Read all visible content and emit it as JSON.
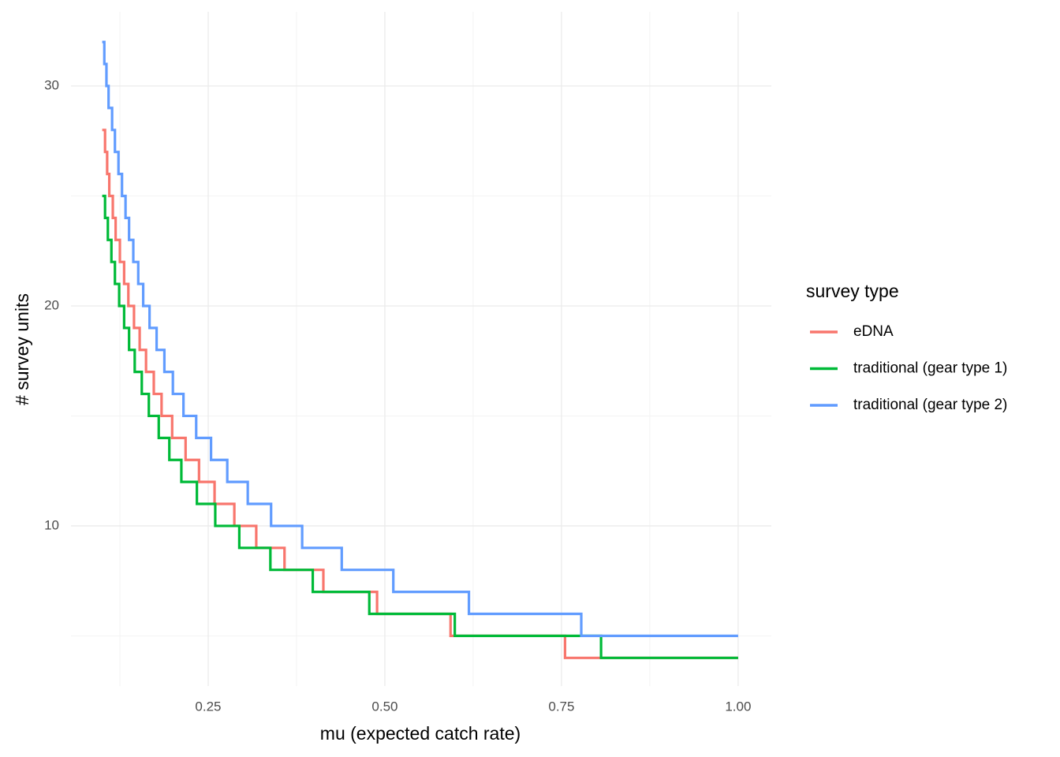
{
  "chart_data": {
    "type": "step",
    "x_label": "mu (expected catch rate)",
    "y_label": "# survey units",
    "legend_title": "survey type",
    "legend_position": "right",
    "grid": true,
    "xlim": [
      0.0558,
      1.047
    ],
    "ylim": [
      2.72,
      33.37
    ],
    "xticks": [
      0.25,
      {
        "value": 0.5,
        "label": "0.50"
      },
      0.75,
      {
        "value": 1,
        "label": "1.00"
      }
    ],
    "yticks": [
      10,
      20,
      30
    ],
    "x_minor_ticks": [
      0.125,
      0.375,
      0.625,
      0.875
    ],
    "y_minor_ticks": [
      5,
      15,
      25
    ],
    "series": [
      {
        "name": "eDNA",
        "color": "#F8766D",
        "x": [
          0.1,
          0.104,
          0.107,
          0.11,
          0.115,
          0.119,
          0.125,
          0.131,
          0.137,
          0.145,
          0.153,
          0.162,
          0.173,
          0.184,
          0.199,
          0.218,
          0.237,
          0.259,
          0.287,
          0.318,
          0.358,
          0.413,
          0.489,
          0.593,
          0.755,
          1.0
        ],
        "values": [
          28,
          27,
          26,
          25,
          24,
          23,
          22,
          21,
          20,
          19,
          18,
          17,
          16,
          15,
          14,
          13,
          12,
          11,
          10,
          9,
          8,
          7,
          6,
          5,
          4,
          4
        ]
      },
      {
        "name": "traditional (gear type 1)",
        "color": "#00BA38",
        "x": [
          0.1,
          0.104,
          0.108,
          0.113,
          0.118,
          0.124,
          0.131,
          0.138,
          0.146,
          0.156,
          0.166,
          0.18,
          0.195,
          0.212,
          0.234,
          0.26,
          0.294,
          0.338,
          0.398,
          0.478,
          0.599,
          0.806,
          1.0
        ],
        "values": [
          25,
          24,
          23,
          22,
          21,
          20,
          19,
          18,
          17,
          16,
          15,
          14,
          13,
          12,
          11,
          10,
          9,
          8,
          7,
          6,
          5,
          4,
          4
        ]
      },
      {
        "name": "traditional (gear type 2)",
        "color": "#619CFF",
        "x": [
          0.1,
          0.103,
          0.106,
          0.109,
          0.114,
          0.118,
          0.123,
          0.128,
          0.133,
          0.138,
          0.144,
          0.151,
          0.158,
          0.167,
          0.177,
          0.188,
          0.2,
          0.215,
          0.233,
          0.254,
          0.277,
          0.306,
          0.339,
          0.383,
          0.439,
          0.512,
          0.619,
          0.778,
          1.0
        ],
        "values": [
          32,
          31,
          30,
          29,
          28,
          27,
          26,
          25,
          24,
          23,
          22,
          21,
          20,
          19,
          18,
          17,
          16,
          15,
          14,
          13,
          12,
          11,
          10,
          9,
          8,
          7,
          6,
          5,
          5
        ]
      }
    ]
  }
}
